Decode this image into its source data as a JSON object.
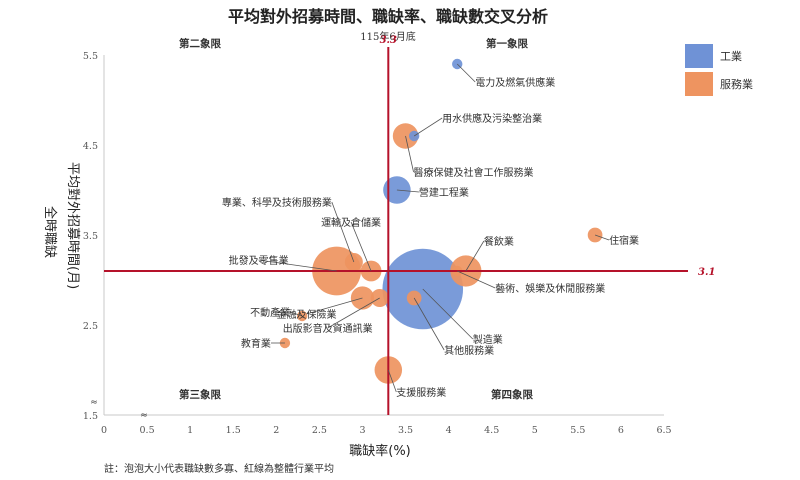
{
  "chart_data": {
    "type": "scatter",
    "title": "平均對外招募時間、職缺率、職缺數交叉分析",
    "subtitle": "115年6月底",
    "xlabel": "職缺率(%)",
    "ylabel_main": "平均對外招募時間(月)",
    "ylabel_side": "全時職缺",
    "xlim": [
      0,
      6.5
    ],
    "ylim": [
      1.5,
      5.5
    ],
    "x_ticks": [
      "0",
      "0.5",
      "1",
      "1.5",
      "2",
      "2.5",
      "3",
      "3.5",
      "4",
      "4.5",
      "5",
      "5.5",
      "6",
      "6.5"
    ],
    "y_ticks": [
      "1.5",
      "2.5",
      "3.5",
      "4.5",
      "5.5"
    ],
    "axis_break_marks": [
      "≈",
      "≈"
    ],
    "grid": false,
    "colors": {
      "industry": "#6f92d6",
      "service": "#ee9460",
      "ref_line": "#b5122a"
    },
    "legend_position": "top-right",
    "legend": [
      {
        "name": "工業",
        "group": "industry"
      },
      {
        "name": "服務業",
        "group": "service"
      }
    ],
    "reference_lines": {
      "x": 3.3,
      "y": 3.1,
      "x_label": "3.3",
      "y_label": "3.1"
    },
    "quadrants": {
      "q2": "第二象限",
      "q1": "第一象限",
      "q3": "第三象限",
      "q4": "第四象限"
    },
    "series": [
      {
        "name": "電力及燃氣供應業",
        "group": "industry",
        "x": 4.1,
        "y": 5.4,
        "size": 1
      },
      {
        "name": "用水供應及污染整治業",
        "group": "industry",
        "x": 3.6,
        "y": 4.6,
        "size": 1
      },
      {
        "name": "醫療保健及社會工作服務業",
        "group": "service",
        "x": 3.5,
        "y": 4.6,
        "size": 6
      },
      {
        "name": "營建工程業",
        "group": "industry",
        "x": 3.4,
        "y": 4.0,
        "size": 7
      },
      {
        "name": "專業、科學及技術服務業",
        "group": "service",
        "x": 2.9,
        "y": 3.2,
        "size": 3
      },
      {
        "name": "運輸及倉儲業",
        "group": "service",
        "x": 3.1,
        "y": 3.1,
        "size": 4
      },
      {
        "name": "批發及零售業",
        "group": "service",
        "x": 2.7,
        "y": 3.1,
        "size": 22
      },
      {
        "name": "餐飲業",
        "group": "service",
        "x": 4.2,
        "y": 3.1,
        "size": 9
      },
      {
        "name": "住宿業",
        "group": "service",
        "x": 5.7,
        "y": 3.5,
        "size": 2
      },
      {
        "name": "藝術、娛樂及休閒服務業",
        "group": "service",
        "x": 4.1,
        "y": 3.1,
        "size": 1
      },
      {
        "name": "製造業",
        "group": "industry",
        "x": 3.7,
        "y": 2.9,
        "size": 60
      },
      {
        "name": "其他服務業",
        "group": "service",
        "x": 3.6,
        "y": 2.8,
        "size": 2
      },
      {
        "name": "不動產業",
        "group": "service",
        "x": 2.3,
        "y": 2.6,
        "size": 1
      },
      {
        "name": "金融及保險業",
        "group": "service",
        "x": 3.0,
        "y": 2.8,
        "size": 5
      },
      {
        "name": "教育業",
        "group": "service",
        "x": 2.1,
        "y": 2.3,
        "size": 1
      },
      {
        "name": "出版影音及資通訊業",
        "group": "service",
        "x": 3.2,
        "y": 2.8,
        "size": 3
      },
      {
        "name": "支援服務業",
        "group": "service",
        "x": 3.3,
        "y": 2.0,
        "size": 7
      }
    ]
  },
  "note": "註：泡泡大小代表職缺數多寡、紅線為整體行業平均"
}
